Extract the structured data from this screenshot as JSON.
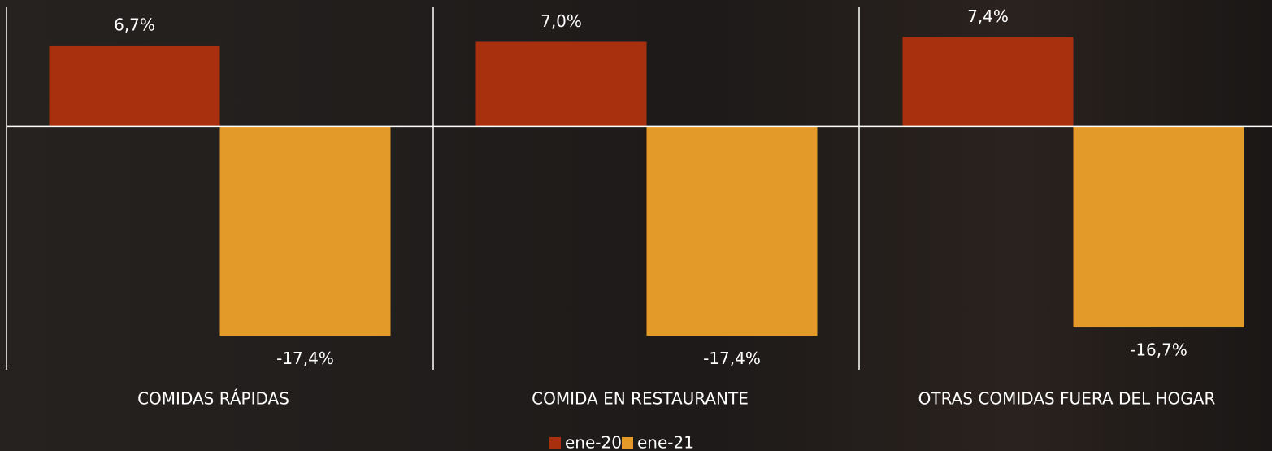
{
  "chart_data": {
    "type": "bar",
    "categories": [
      "COMIDAS RÁPIDAS",
      "COMIDA EN RESTAURANTE",
      "OTRAS COMIDAS FUERA DEL HOGAR"
    ],
    "series": [
      {
        "name": "ene-20",
        "color": "#a9300f",
        "values": [
          6.7,
          7.0,
          7.4
        ],
        "value_labels": [
          "6,7%",
          "7,0%",
          "7,4%"
        ]
      },
      {
        "name": "ene-21",
        "color": "#e39a28",
        "values": [
          -17.4,
          -17.4,
          -16.7
        ],
        "value_labels": [
          "-17,4%",
          "-17,4%",
          "-16,7%"
        ]
      }
    ],
    "ylim": [
      -20,
      10
    ],
    "legend": "bottom"
  }
}
